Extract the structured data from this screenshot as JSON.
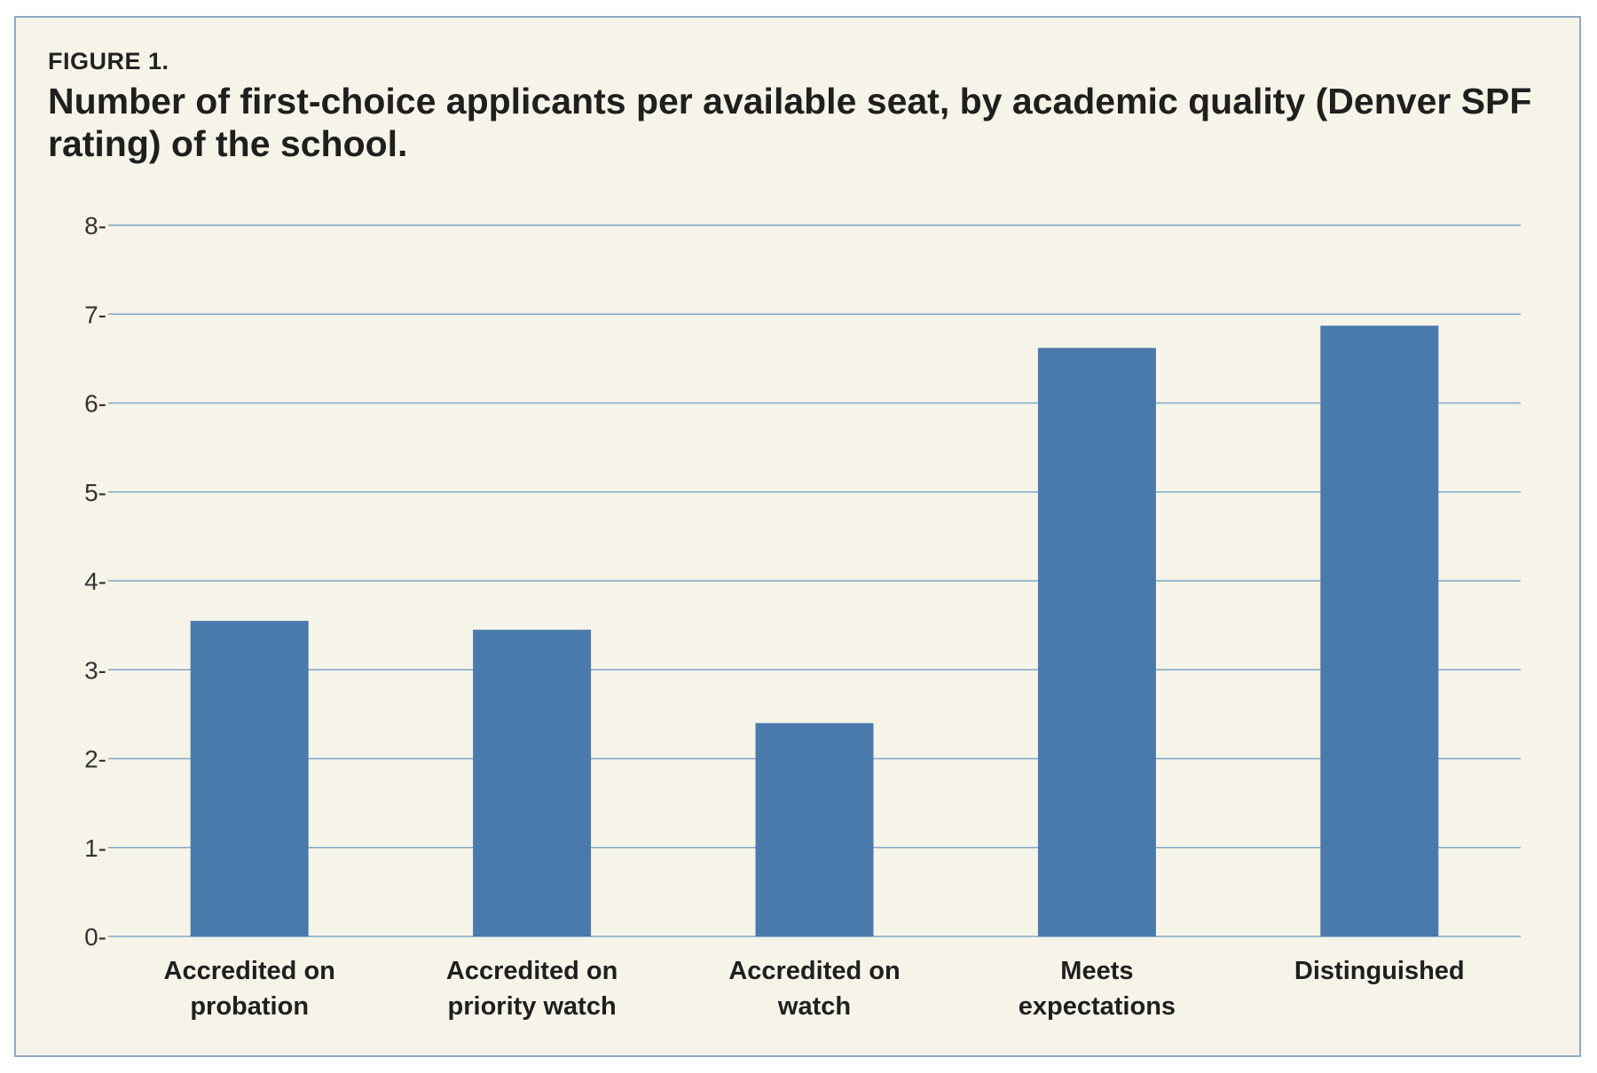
{
  "figure_label": "FIGURE 1.",
  "chart_data": {
    "type": "bar",
    "title": "Number of first-choice applicants per available seat, by academic quality (Denver SPF rating) of the school.",
    "xlabel": "",
    "ylabel": "",
    "categories": [
      [
        "Accredited on",
        "probation"
      ],
      [
        "Accredited on",
        "priority watch"
      ],
      [
        "Accredited on",
        "watch"
      ],
      [
        "Meets",
        "expectations"
      ],
      [
        "Distinguished"
      ]
    ],
    "values": [
      3.55,
      3.45,
      2.4,
      6.62,
      6.87
    ],
    "ylim": [
      0,
      8
    ],
    "yticks": [
      "0-",
      "1-",
      "2-",
      "3-",
      "4-",
      "5-",
      "6-",
      "7-",
      "8-"
    ],
    "grid": true,
    "legend": "none",
    "colors": {
      "bar": "#4a7aab",
      "grid": "#7fa6c8",
      "background": "#f6f4e8"
    }
  }
}
